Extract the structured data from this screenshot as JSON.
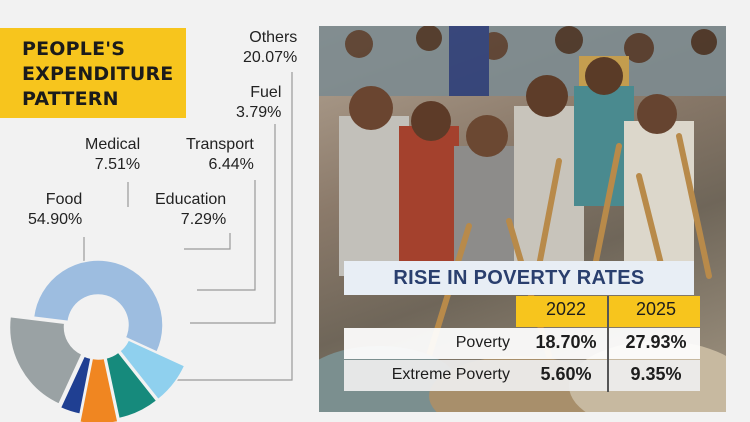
{
  "title": {
    "line1": "PEOPLE'S",
    "line2": "EXPENDITURE",
    "line3": "PATTERN"
  },
  "colors": {
    "title_bg": "#f7c51d",
    "food": "#9dbde0",
    "medical": "#8fd0ee",
    "education": "#168a7c",
    "transport": "#f08621",
    "fuel": "#1f3f92",
    "others": "#9aa2a4"
  },
  "chart_data": {
    "type": "pie",
    "title": "PEOPLE'S EXPENDITURE PATTERN",
    "slices": [
      {
        "name": "Food",
        "value": 54.9,
        "label": "54.90%"
      },
      {
        "name": "Medical",
        "value": 7.51,
        "label": "7.51%"
      },
      {
        "name": "Education",
        "value": 7.29,
        "label": "7.29%"
      },
      {
        "name": "Transport",
        "value": 6.44,
        "label": "6.44%"
      },
      {
        "name": "Fuel",
        "value": 3.79,
        "label": "3.79%"
      },
      {
        "name": "Others",
        "value": 20.07,
        "label": "20.07%"
      }
    ]
  },
  "poverty": {
    "title": "RISE IN POVERTY RATES",
    "years": [
      "2022",
      "2025"
    ],
    "rows": [
      {
        "label": "Poverty",
        "values": [
          "18.70%",
          "27.93%"
        ]
      },
      {
        "label": "Extreme Poverty",
        "values": [
          "5.60%",
          "9.35%"
        ]
      }
    ]
  }
}
